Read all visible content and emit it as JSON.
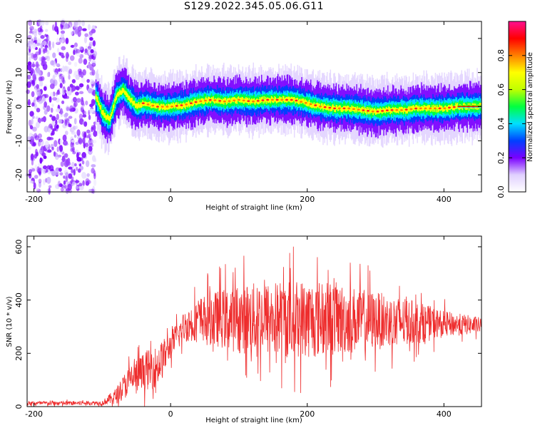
{
  "title": "S129.2022.345.05.06.G11",
  "colors": {
    "snr_line": "#ee2c2c",
    "axis": "#000000"
  },
  "chart_data": [
    {
      "type": "heatmap",
      "xlabel": "Height of straight line (km)",
      "ylabel": "Frequency (Hz)",
      "xlim": [
        -210,
        455
      ],
      "ylim": [
        -25,
        25
      ],
      "xticks": [
        -200,
        0,
        200,
        400
      ],
      "yticks": [
        -20,
        -10,
        0,
        10,
        20
      ],
      "colorbar": {
        "label": "Normalized spectral amplitude",
        "range": [
          0.0,
          1.0
        ],
        "ticks": [
          0.0,
          0.2,
          0.4,
          0.6,
          0.8
        ],
        "colormap": [
          "#ffffff",
          "#e0d0ff",
          "#7a00ff",
          "#0040ff",
          "#00e0ff",
          "#00ff40",
          "#c0ff00",
          "#ffff00",
          "#ff8000",
          "#ff0000",
          "#ff1090"
        ]
      },
      "ridge": {
        "x": [
          -110,
          -100,
          -90,
          -80,
          -70,
          -60,
          -50,
          -40,
          -30,
          -20,
          -10,
          0,
          20,
          40,
          60,
          80,
          100,
          120,
          140,
          160,
          180,
          200,
          220,
          240,
          260,
          280,
          300,
          320,
          340,
          360,
          380,
          400,
          420,
          455
        ],
        "y": [
          3,
          -2,
          -4,
          3,
          5,
          2,
          0,
          1,
          0.5,
          0,
          0,
          0,
          0.5,
          1.5,
          2,
          1.5,
          2,
          1.5,
          2,
          2,
          2,
          1,
          0,
          -0.5,
          -0.5,
          -1,
          -1.5,
          -1,
          -1,
          -0.5,
          -0.5,
          -0.5,
          0,
          0
        ]
      },
      "noise_region_x": [
        -210,
        -110
      ]
    },
    {
      "type": "line",
      "xlabel": "Height of straight line (km)",
      "ylabel": "SNR (10 * v/v)",
      "xlim": [
        -210,
        455
      ],
      "ylim": [
        0,
        640
      ],
      "xticks": [
        -200,
        0,
        200,
        400
      ],
      "yticks": [
        0,
        200,
        400,
        600
      ],
      "grid": false,
      "series": [
        {
          "envelope_x": [
            -210,
            -100,
            -80,
            -60,
            -40,
            -20,
            0,
            20,
            40,
            60,
            100,
            140,
            180,
            200,
            240,
            280,
            320,
            360,
            400,
            455
          ],
          "envelope_mean": [
            12,
            14,
            40,
            100,
            130,
            150,
            230,
            300,
            330,
            330,
            330,
            330,
            330,
            330,
            330,
            325,
            320,
            315,
            310,
            305
          ],
          "envelope_spread": [
            8,
            8,
            30,
            60,
            70,
            80,
            50,
            60,
            80,
            100,
            130,
            140,
            150,
            150,
            140,
            120,
            100,
            80,
            50,
            30
          ]
        }
      ]
    }
  ]
}
